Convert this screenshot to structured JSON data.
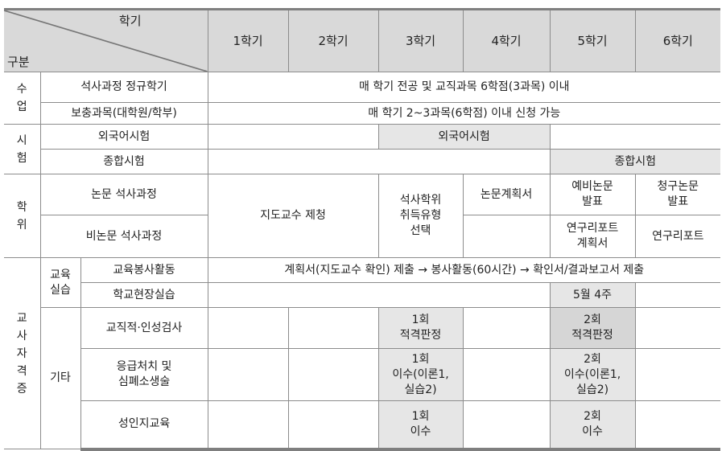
{
  "header": {
    "corner_top": "학기",
    "corner_bottom": "구분",
    "semesters": [
      "1학기",
      "2학기",
      "3학기",
      "4학기",
      "5학기",
      "6학기"
    ]
  },
  "class": {
    "group": "수\n업",
    "regular": "석사과정 정규학기",
    "regular_text": "매 학기 전공 및 교직과목 6학점(3과목) 이내",
    "supp": "보충과목(대학원/학부)",
    "supp_text": "매 학기 2~3과목(6학점) 이내 신청 가능"
  },
  "exam": {
    "group": "시\n험",
    "foreign": "외국어시험",
    "foreign_period": "외국어시험",
    "comp": "종합시험",
    "comp_period": "종합시험"
  },
  "degree": {
    "group": "학\n위",
    "thesis": "논문 석사과정",
    "nonthesis": "비논문 석사과정",
    "advisor": "지도교수 제청",
    "type_select": "석사학위\n취득유형\n선택",
    "thesis_plan": "논문계획서",
    "prelim": "예비논문\n발표",
    "final": "청구논문\n발표",
    "report_plan": "연구리포트\n계획서",
    "report": "연구리포트"
  },
  "teacher": {
    "group": "교\n사\n자\n격\n증",
    "practice_group": "교육\n실습",
    "service": "교육봉사활동",
    "service_text": "계획서(지도교수 확인) 제출 → 봉사활동(60시간) → 확인서/결과보고서 제출",
    "school": "학교현장실습",
    "school_time": "5월 4주",
    "etc_group": "기타",
    "aptitude": "교직적·인성검사",
    "aptitude_1": "1회\n적격판정",
    "aptitude_2": "2회\n적격판정",
    "cpr": "응급처치 및\n심폐소생술",
    "cpr_1": "1회\n이수(이론1,\n실습2)",
    "cpr_2": "2회\n이수(이론1,\n실습2)",
    "gender": "성인지교육",
    "gender_1": "1회\n이수",
    "gender_2": "2회\n이수"
  }
}
